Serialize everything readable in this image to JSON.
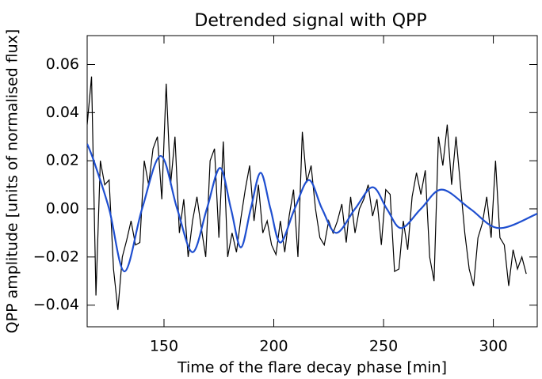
{
  "chart_data": {
    "type": "line",
    "title": "Detrended signal with QPP",
    "xlabel": "Time of the flare decay phase [min]",
    "ylabel": "QPP amplitude [units of normalised flux]",
    "xlim": [
      115,
      320
    ],
    "ylim": [
      -0.049,
      0.072
    ],
    "xticks": [
      150,
      200,
      250,
      300
    ],
    "yticks": [
      {
        "value": -0.04,
        "label": "−0.04"
      },
      {
        "value": -0.02,
        "label": "−0.02"
      },
      {
        "value": 0,
        "label": "0.00"
      },
      0.02,
      0.04,
      0.06
    ],
    "x": [
      115,
      117,
      119,
      121,
      123,
      125,
      127,
      129,
      131,
      133,
      135,
      137,
      139,
      141,
      143,
      145,
      147,
      149,
      151,
      153,
      155,
      157,
      159,
      161,
      163,
      165,
      167,
      169,
      171,
      173,
      175,
      177,
      179,
      181,
      183,
      185,
      187,
      189,
      191,
      193,
      195,
      197,
      199,
      201,
      203,
      205,
      207,
      209,
      211,
      213,
      215,
      217,
      219,
      221,
      223,
      225,
      227,
      229,
      231,
      233,
      235,
      237,
      239,
      241,
      243,
      245,
      247,
      249,
      251,
      253,
      255,
      257,
      259,
      261,
      263,
      265,
      267,
      269,
      271,
      273,
      275,
      277,
      279,
      281,
      283,
      285,
      287,
      289,
      291,
      293,
      295,
      297,
      299,
      301,
      303,
      305,
      307,
      309,
      311,
      313,
      315
    ],
    "series": [
      {
        "color": "#000000",
        "values": [
          0.035,
          0.055,
          -0.036,
          0.02,
          0.01,
          0.012,
          -0.025,
          -0.042,
          -0.02,
          -0.013,
          -0.005,
          -0.015,
          -0.014,
          0.02,
          0.01,
          0.025,
          0.03,
          0.004,
          0.052,
          0.01,
          0.03,
          -0.01,
          0.004,
          -0.02,
          -0.005,
          0.005,
          -0.008,
          -0.02,
          0.02,
          0.025,
          -0.012,
          0.028,
          -0.02,
          -0.01,
          -0.018,
          -0.004,
          0.008,
          0.018,
          -0.005,
          0.01,
          -0.01,
          -0.005,
          -0.015,
          -0.019,
          -0.005,
          -0.018,
          -0.003,
          0.008,
          -0.02,
          0.032,
          0.011,
          0.018,
          0.0,
          -0.012,
          -0.015,
          -0.005,
          -0.01,
          -0.005,
          0.002,
          -0.014,
          0.005,
          -0.01,
          0.0,
          0.004,
          0.01,
          -0.003,
          0.004,
          -0.015,
          0.008,
          0.006,
          -0.026,
          -0.025,
          -0.005,
          -0.017,
          0.005,
          0.015,
          0.006,
          0.016,
          -0.02,
          -0.03,
          0.03,
          0.018,
          0.035,
          0.01,
          0.03,
          0.01,
          -0.01,
          -0.025,
          -0.032,
          -0.012,
          -0.006,
          0.005,
          -0.012,
          0.02,
          -0.012,
          -0.015,
          -0.032,
          -0.017,
          -0.025,
          -0.02,
          -0.027
        ]
      },
      {
        "color": "#1f4fd0",
        "smooth": true,
        "x": [
          115,
          118,
          125,
          132,
          140,
          148.5,
          156,
          163,
          169.5,
          175.5,
          180.5,
          185,
          189.5,
          194,
          198.5,
          203,
          209.5,
          216,
          222,
          228.5,
          237,
          245,
          251.5,
          258,
          267,
          276.5,
          289.5,
          302.5,
          320
        ],
        "values": [
          0.027,
          0.02,
          0,
          -0.026,
          0,
          0.022,
          0,
          -0.018,
          0,
          0.017,
          0,
          -0.016,
          0,
          0.015,
          0,
          -0.014,
          0,
          0.012,
          0,
          -0.01,
          0,
          0.009,
          0,
          -0.008,
          0,
          0.008,
          0,
          -0.008,
          -0.002
        ]
      }
    ]
  }
}
